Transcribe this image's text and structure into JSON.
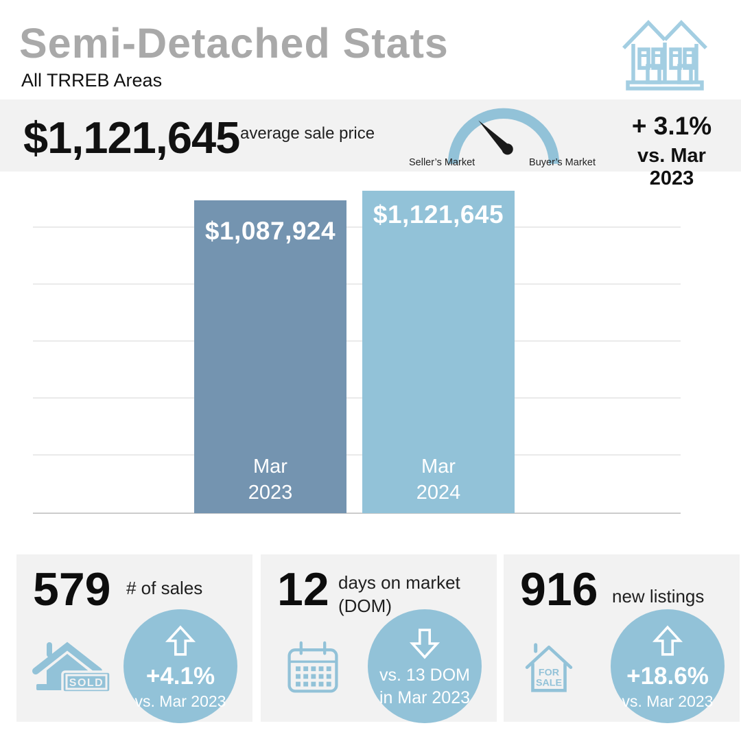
{
  "header": {
    "title": "Semi-Detached Stats",
    "subtitle": "All TRREB Areas",
    "icon": "semi-detached-houses-icon"
  },
  "price_band": {
    "price": "$1,121,645",
    "price_label": "average sale price",
    "gauge": {
      "icon": "market-gauge-icon",
      "left_label": "Seller’s Market",
      "right_label": "Buyer’s Market",
      "needle_position": "seller-side"
    },
    "yoy_change": "+ 3.1%",
    "yoy_versus": "vs. Mar 2023"
  },
  "chart_data": {
    "type": "bar",
    "categories": [
      "Mar 2023",
      "Mar 2024"
    ],
    "category_lines": [
      [
        "Mar",
        "2023"
      ],
      [
        "Mar",
        "2024"
      ]
    ],
    "values": [
      1087924,
      1121645
    ],
    "value_labels": [
      "$1,087,924",
      "$1,121,645"
    ],
    "bar_colors": [
      "#7494b0",
      "#92c2d8"
    ],
    "xlabel": "",
    "ylabel": "",
    "axis_tick_labels": "none",
    "gridlines": "horizontal",
    "legend": "none"
  },
  "cards": [
    {
      "value": "579",
      "label": "# of sales",
      "icon": "house-sold-icon",
      "icon_text": "SOLD",
      "badge": {
        "direction": "up",
        "line1": "+4.1%",
        "line2": "vs. Mar 2023"
      }
    },
    {
      "value": "12",
      "label": "days on market (DOM)",
      "icon": "calendar-icon",
      "badge": {
        "direction": "down",
        "line1": "vs. 13 DOM",
        "line2": "in Mar 2023"
      }
    },
    {
      "value": "916",
      "label": "new listings",
      "icon": "house-for-sale-icon",
      "icon_text_lines": [
        "FOR",
        "SALE"
      ],
      "badge": {
        "direction": "up",
        "line1": "+18.6%",
        "line2": "vs. Mar 2023"
      }
    }
  ],
  "colors": {
    "accent_light_blue": "#92c2d8",
    "accent_slate_blue": "#7494b0",
    "icon_outline_blue": "#a3cee2",
    "panel_gray": "#f2f2f2",
    "title_gray": "#a9a9a9",
    "text_black": "#1a1a1a",
    "white": "#ffffff"
  }
}
